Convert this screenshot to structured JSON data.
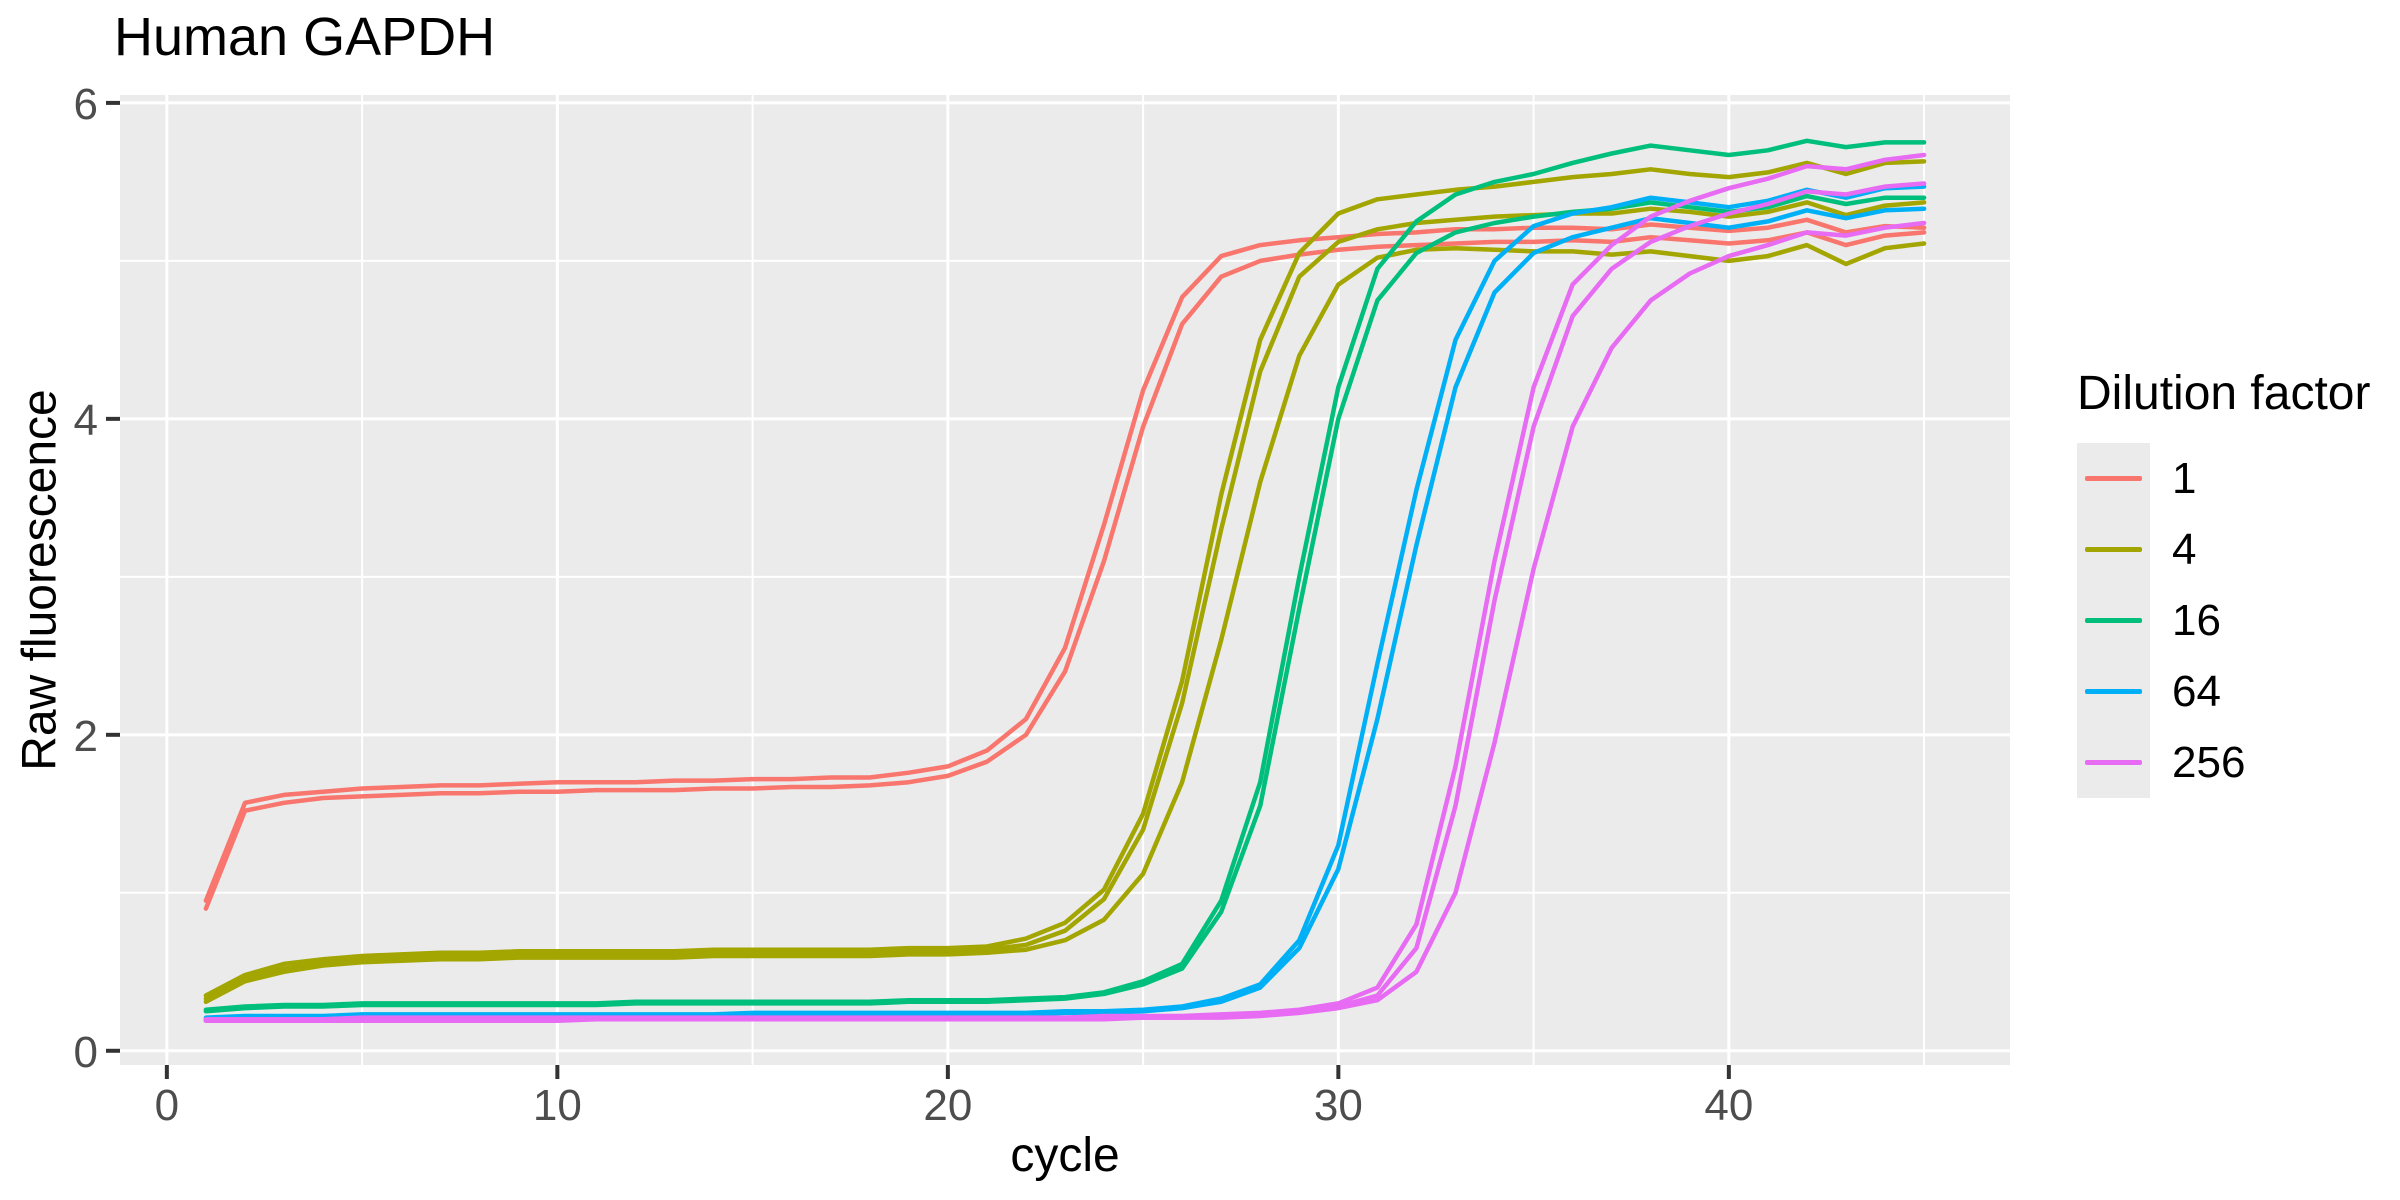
{
  "title": "Human GAPDH",
  "axes": {
    "x": {
      "label": "cycle",
      "ticks": [
        0,
        10,
        20,
        30,
        40
      ],
      "minor_ticks": [
        5,
        15,
        25,
        35,
        45
      ],
      "domain": [
        -1.2,
        47.2
      ]
    },
    "y": {
      "label": "Raw fluorescence",
      "ticks": [
        0,
        2,
        4,
        6
      ],
      "minor_ticks": [
        1,
        3,
        5
      ],
      "domain": [
        -0.09,
        6.05
      ]
    }
  },
  "legend": {
    "title": "Dilution factor",
    "entries": [
      {
        "label": "1",
        "color": "#F8766D"
      },
      {
        "label": "4",
        "color": "#A3A500"
      },
      {
        "label": "16",
        "color": "#00BF7D"
      },
      {
        "label": "64",
        "color": "#00B0F6"
      },
      {
        "label": "256",
        "color": "#E76BF3"
      }
    ]
  },
  "style": {
    "panel_bg": "#EBEBEB",
    "grid_color": "#FFFFFF",
    "tick_mark_color": "#333333",
    "tick_label_color": "#4D4D4D",
    "line_width": 4.5
  },
  "chart_data": {
    "type": "line",
    "title": "Human GAPDH",
    "xlabel": "cycle",
    "ylabel": "Raw fluorescence",
    "xlim": [
      -1.2,
      47.2
    ],
    "ylim": [
      -0.09,
      6.05
    ],
    "grid": true,
    "legend_position": "right",
    "legend_title": "Dilution factor",
    "x": [
      1,
      2,
      3,
      4,
      5,
      6,
      7,
      8,
      9,
      10,
      11,
      12,
      13,
      14,
      15,
      16,
      17,
      18,
      19,
      20,
      21,
      22,
      23,
      24,
      25,
      26,
      27,
      28,
      29,
      30,
      31,
      32,
      33,
      34,
      35,
      36,
      37,
      38,
      39,
      40,
      41,
      42,
      43,
      44,
      45
    ],
    "series": [
      {
        "name": "dilution 1 replicate 1",
        "dilution": "1",
        "color": "#F8766D",
        "values": [
          0.95,
          1.57,
          1.62,
          1.64,
          1.66,
          1.67,
          1.68,
          1.68,
          1.69,
          1.7,
          1.7,
          1.7,
          1.71,
          1.71,
          1.72,
          1.72,
          1.73,
          1.73,
          1.76,
          1.8,
          1.9,
          2.1,
          2.55,
          3.33,
          4.18,
          4.77,
          5.03,
          5.1,
          5.13,
          5.15,
          5.17,
          5.18,
          5.2,
          5.2,
          5.21,
          5.21,
          5.2,
          5.23,
          5.21,
          5.19,
          5.21,
          5.26,
          5.18,
          5.22,
          5.21
        ]
      },
      {
        "name": "dilution 1 replicate 2",
        "dilution": "1",
        "color": "#F8766D",
        "values": [
          0.9,
          1.52,
          1.57,
          1.6,
          1.61,
          1.62,
          1.63,
          1.63,
          1.64,
          1.64,
          1.65,
          1.65,
          1.65,
          1.66,
          1.66,
          1.67,
          1.67,
          1.68,
          1.7,
          1.74,
          1.83,
          2.0,
          2.4,
          3.1,
          3.95,
          4.6,
          4.9,
          5.0,
          5.04,
          5.07,
          5.09,
          5.1,
          5.11,
          5.12,
          5.12,
          5.13,
          5.12,
          5.15,
          5.13,
          5.11,
          5.13,
          5.18,
          5.1,
          5.16,
          5.18
        ]
      },
      {
        "name": "dilution 4 replicate 1",
        "dilution": "4",
        "color": "#A3A500",
        "values": [
          0.35,
          0.48,
          0.55,
          0.58,
          0.6,
          0.61,
          0.62,
          0.62,
          0.63,
          0.63,
          0.63,
          0.63,
          0.63,
          0.64,
          0.64,
          0.64,
          0.64,
          0.64,
          0.65,
          0.65,
          0.66,
          0.71,
          0.81,
          1.02,
          1.5,
          2.34,
          3.52,
          4.5,
          5.05,
          5.3,
          5.39,
          5.42,
          5.45,
          5.47,
          5.5,
          5.53,
          5.55,
          5.58,
          5.55,
          5.53,
          5.56,
          5.62,
          5.55,
          5.62,
          5.63
        ]
      },
      {
        "name": "dilution 4 replicate 2",
        "dilution": "4",
        "color": "#A3A500",
        "values": [
          0.33,
          0.46,
          0.52,
          0.56,
          0.58,
          0.59,
          0.6,
          0.6,
          0.61,
          0.61,
          0.61,
          0.61,
          0.61,
          0.62,
          0.62,
          0.62,
          0.62,
          0.62,
          0.63,
          0.63,
          0.64,
          0.67,
          0.76,
          0.96,
          1.4,
          2.2,
          3.3,
          4.3,
          4.9,
          5.12,
          5.2,
          5.24,
          5.26,
          5.28,
          5.29,
          5.3,
          5.3,
          5.33,
          5.31,
          5.28,
          5.31,
          5.37,
          5.29,
          5.35,
          5.37
        ]
      },
      {
        "name": "dilution 4 replicate 3",
        "dilution": "4",
        "color": "#A3A500",
        "values": [
          0.31,
          0.44,
          0.5,
          0.54,
          0.56,
          0.57,
          0.58,
          0.58,
          0.59,
          0.59,
          0.59,
          0.59,
          0.59,
          0.6,
          0.6,
          0.6,
          0.6,
          0.6,
          0.61,
          0.61,
          0.62,
          0.64,
          0.7,
          0.83,
          1.12,
          1.7,
          2.6,
          3.6,
          4.4,
          4.85,
          5.02,
          5.07,
          5.08,
          5.07,
          5.06,
          5.06,
          5.04,
          5.06,
          5.03,
          5.0,
          5.03,
          5.1,
          4.98,
          5.08,
          5.11
        ]
      },
      {
        "name": "dilution 16 replicate 1",
        "dilution": "16",
        "color": "#00BF7D",
        "values": [
          0.26,
          0.28,
          0.29,
          0.29,
          0.3,
          0.3,
          0.3,
          0.3,
          0.3,
          0.3,
          0.3,
          0.31,
          0.31,
          0.31,
          0.31,
          0.31,
          0.31,
          0.31,
          0.32,
          0.32,
          0.32,
          0.33,
          0.34,
          0.37,
          0.44,
          0.55,
          0.95,
          1.7,
          3.0,
          4.2,
          4.95,
          5.25,
          5.42,
          5.5,
          5.55,
          5.62,
          5.68,
          5.73,
          5.7,
          5.67,
          5.7,
          5.76,
          5.72,
          5.75,
          5.75
        ]
      },
      {
        "name": "dilution 16 replicate 2",
        "dilution": "16",
        "color": "#00BF7D",
        "values": [
          0.25,
          0.27,
          0.28,
          0.28,
          0.29,
          0.29,
          0.29,
          0.29,
          0.29,
          0.29,
          0.29,
          0.3,
          0.3,
          0.3,
          0.3,
          0.3,
          0.3,
          0.3,
          0.31,
          0.31,
          0.31,
          0.32,
          0.33,
          0.36,
          0.42,
          0.52,
          0.88,
          1.55,
          2.8,
          4.0,
          4.75,
          5.05,
          5.18,
          5.24,
          5.28,
          5.31,
          5.33,
          5.37,
          5.34,
          5.31,
          5.34,
          5.41,
          5.36,
          5.4,
          5.4
        ]
      },
      {
        "name": "dilution 64 replicate 1",
        "dilution": "64",
        "color": "#00B0F6",
        "values": [
          0.21,
          0.22,
          0.22,
          0.22,
          0.23,
          0.23,
          0.23,
          0.23,
          0.23,
          0.23,
          0.23,
          0.23,
          0.23,
          0.23,
          0.24,
          0.24,
          0.24,
          0.24,
          0.24,
          0.24,
          0.24,
          0.24,
          0.25,
          0.25,
          0.26,
          0.28,
          0.33,
          0.42,
          0.7,
          1.3,
          2.45,
          3.55,
          4.5,
          5.0,
          5.22,
          5.3,
          5.34,
          5.4,
          5.37,
          5.34,
          5.38,
          5.45,
          5.4,
          5.46,
          5.47
        ]
      },
      {
        "name": "dilution 64 replicate 2",
        "dilution": "64",
        "color": "#00B0F6",
        "values": [
          0.2,
          0.21,
          0.21,
          0.21,
          0.22,
          0.22,
          0.22,
          0.22,
          0.22,
          0.22,
          0.22,
          0.22,
          0.22,
          0.22,
          0.23,
          0.23,
          0.23,
          0.23,
          0.23,
          0.23,
          0.23,
          0.23,
          0.24,
          0.24,
          0.25,
          0.27,
          0.31,
          0.4,
          0.65,
          1.15,
          2.1,
          3.2,
          4.2,
          4.8,
          5.05,
          5.15,
          5.21,
          5.27,
          5.24,
          5.21,
          5.25,
          5.32,
          5.27,
          5.32,
          5.33
        ]
      },
      {
        "name": "dilution 256 replicate 1",
        "dilution": "256",
        "color": "#E76BF3",
        "values": [
          0.2,
          0.2,
          0.2,
          0.2,
          0.21,
          0.21,
          0.21,
          0.21,
          0.21,
          0.21,
          0.21,
          0.21,
          0.21,
          0.21,
          0.21,
          0.21,
          0.21,
          0.21,
          0.21,
          0.21,
          0.21,
          0.21,
          0.21,
          0.22,
          0.22,
          0.22,
          0.23,
          0.24,
          0.26,
          0.3,
          0.4,
          0.8,
          1.8,
          3.1,
          4.2,
          4.85,
          5.1,
          5.28,
          5.38,
          5.46,
          5.52,
          5.6,
          5.58,
          5.64,
          5.67
        ]
      },
      {
        "name": "dilution 256 replicate 2",
        "dilution": "256",
        "color": "#E76BF3",
        "values": [
          0.19,
          0.19,
          0.19,
          0.19,
          0.2,
          0.2,
          0.2,
          0.2,
          0.2,
          0.2,
          0.2,
          0.2,
          0.2,
          0.2,
          0.2,
          0.2,
          0.2,
          0.2,
          0.2,
          0.2,
          0.2,
          0.2,
          0.2,
          0.21,
          0.21,
          0.21,
          0.22,
          0.23,
          0.25,
          0.28,
          0.35,
          0.65,
          1.55,
          2.85,
          3.95,
          4.65,
          4.95,
          5.12,
          5.22,
          5.3,
          5.36,
          5.44,
          5.42,
          5.47,
          5.49
        ]
      },
      {
        "name": "dilution 256 replicate 3",
        "dilution": "256",
        "color": "#E76BF3",
        "values": [
          0.19,
          0.19,
          0.19,
          0.19,
          0.19,
          0.19,
          0.19,
          0.19,
          0.19,
          0.19,
          0.2,
          0.2,
          0.2,
          0.2,
          0.2,
          0.2,
          0.2,
          0.2,
          0.2,
          0.2,
          0.2,
          0.2,
          0.2,
          0.2,
          0.21,
          0.21,
          0.21,
          0.22,
          0.24,
          0.27,
          0.32,
          0.5,
          1.0,
          1.95,
          3.05,
          3.95,
          4.45,
          4.75,
          4.92,
          5.03,
          5.1,
          5.18,
          5.16,
          5.21,
          5.24
        ]
      }
    ]
  }
}
